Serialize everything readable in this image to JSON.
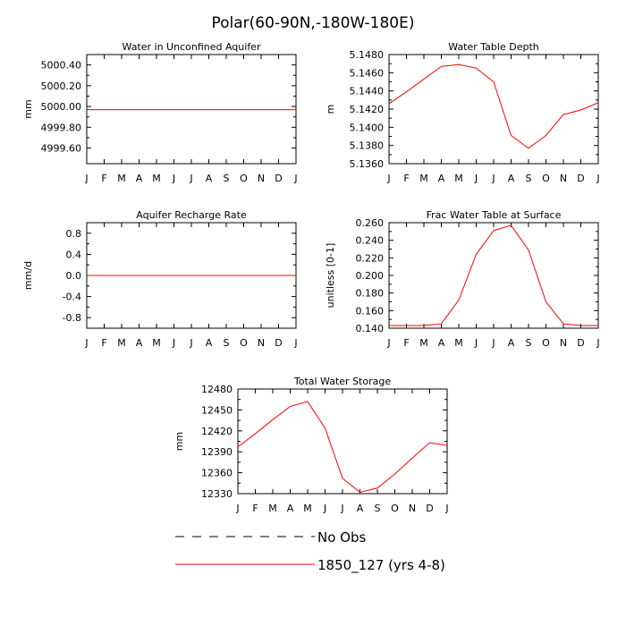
{
  "page_title": "Polar(60-90N,-180W-180E)",
  "months": [
    "J",
    "F",
    "M",
    "A",
    "M",
    "J",
    "J",
    "A",
    "S",
    "O",
    "N",
    "D",
    "J"
  ],
  "legend": [
    {
      "label": "No Obs",
      "color": "#000000",
      "style": "dashed"
    },
    {
      "label": "1850_127 (yrs 4-8)",
      "color": "#ff0000",
      "style": "solid"
    }
  ],
  "chart_data": [
    {
      "type": "line",
      "title": "Water in Unconfined Aquifer",
      "ylabel": "mm",
      "ylim": [
        4999.45,
        5000.5
      ],
      "yticks": [
        "5000.40",
        "5000.20",
        "5000.00",
        "4999.80",
        "4999.60"
      ],
      "ytick_values": [
        5000.4,
        5000.2,
        5000.0,
        4999.8,
        4999.6
      ],
      "x": [
        0,
        1,
        2,
        3,
        4,
        5,
        6,
        7,
        8,
        9,
        10,
        11,
        12
      ],
      "series": [
        {
          "color": "#ff0000",
          "values": [
            4999.97,
            4999.97,
            4999.97,
            4999.97,
            4999.97,
            4999.97,
            4999.97,
            4999.97,
            4999.97,
            4999.97,
            4999.97,
            4999.97,
            4999.97
          ]
        }
      ]
    },
    {
      "type": "line",
      "title": "Water Table Depth",
      "ylabel": "m",
      "ylim": [
        5.136,
        5.148
      ],
      "yticks": [
        "5.1480",
        "5.1460",
        "5.1440",
        "5.1420",
        "5.1400",
        "5.1380",
        "5.1360"
      ],
      "ytick_values": [
        5.148,
        5.146,
        5.144,
        5.142,
        5.14,
        5.138,
        5.136
      ],
      "x": [
        0,
        1,
        2,
        3,
        4,
        5,
        6,
        7,
        8,
        9,
        10,
        11,
        12
      ],
      "series": [
        {
          "color": "#ff0000",
          "values": [
            5.1426,
            5.1439,
            5.1453,
            5.1467,
            5.1469,
            5.1465,
            5.145,
            5.1391,
            5.1377,
            5.1391,
            5.1414,
            5.1419,
            5.1427
          ]
        }
      ]
    },
    {
      "type": "line",
      "title": "Aquifer Recharge Rate",
      "ylabel": "mm/d",
      "ylim": [
        -1.0,
        1.0
      ],
      "yticks": [
        "0.8",
        "0.4",
        "0.0",
        "-0.4",
        "-0.8"
      ],
      "ytick_values": [
        0.8,
        0.4,
        0.0,
        -0.4,
        -0.8
      ],
      "x": [
        0,
        1,
        2,
        3,
        4,
        5,
        6,
        7,
        8,
        9,
        10,
        11,
        12
      ],
      "series": [
        {
          "color": "#ff0000",
          "values": [
            0,
            0,
            0,
            0,
            0,
            0,
            0,
            0,
            0,
            0,
            0,
            0,
            0
          ]
        }
      ]
    },
    {
      "type": "line",
      "title": "Frac Water Table at Surface",
      "ylabel": "unitless [0-1]",
      "ylim": [
        0.14,
        0.26
      ],
      "yticks": [
        "0.260",
        "0.240",
        "0.220",
        "0.200",
        "0.180",
        "0.160",
        "0.140"
      ],
      "ytick_values": [
        0.26,
        0.24,
        0.22,
        0.2,
        0.18,
        0.16,
        0.14
      ],
      "x": [
        0,
        1,
        2,
        3,
        4,
        5,
        6,
        7,
        8,
        9,
        10,
        11,
        12
      ],
      "series": [
        {
          "color": "#ff0000",
          "values": [
            0.143,
            0.143,
            0.143,
            0.145,
            0.172,
            0.224,
            0.251,
            0.257,
            0.229,
            0.17,
            0.145,
            0.143,
            0.143
          ]
        }
      ]
    },
    {
      "type": "line",
      "title": "Total Water Storage",
      "ylabel": "mm",
      "ylim": [
        12330,
        12480
      ],
      "yticks": [
        "12480",
        "12450",
        "12420",
        "12390",
        "12360",
        "12330"
      ],
      "ytick_values": [
        12480,
        12450,
        12420,
        12390,
        12360,
        12330
      ],
      "x": [
        0,
        1,
        2,
        3,
        4,
        5,
        6,
        7,
        8,
        9,
        10,
        11,
        12
      ],
      "series": [
        {
          "color": "#ff0000",
          "values": [
            12397,
            12416,
            12436,
            12455,
            12462,
            12424,
            12352,
            12332,
            12338,
            12358,
            12381,
            12403,
            12399
          ]
        }
      ]
    }
  ]
}
